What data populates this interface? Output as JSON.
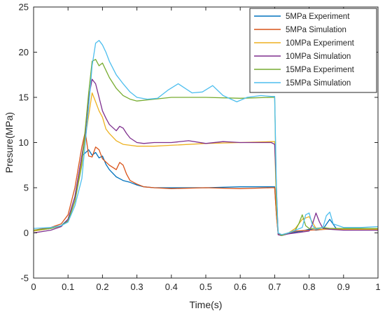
{
  "chart_data": {
    "type": "line",
    "title": "",
    "xlabel": "Time(s)",
    "ylabel": "Presure(MPa)",
    "xlim": [
      0,
      1
    ],
    "ylim": [
      -5,
      25
    ],
    "xticks": [
      0,
      0.1,
      0.2,
      0.3,
      0.4,
      0.5,
      0.6,
      0.7,
      0.8,
      0.9,
      1
    ],
    "xtick_labels": [
      "0",
      "0.1",
      "0.2",
      "0.3",
      "0.4",
      "0.5",
      "0.6",
      "0.7",
      "0.8",
      "0.9",
      "1"
    ],
    "yticks": [
      -5,
      0,
      5,
      10,
      15,
      20,
      25
    ],
    "ytick_labels": [
      "-5",
      "0",
      "5",
      "10",
      "15",
      "20",
      "25"
    ],
    "grid": false,
    "legend_position": "top-right",
    "series": [
      {
        "name": "5MPa Experiment",
        "color": "#0072BD",
        "x": [
          0,
          0.05,
          0.08,
          0.1,
          0.12,
          0.14,
          0.16,
          0.17,
          0.18,
          0.19,
          0.2,
          0.21,
          0.22,
          0.24,
          0.26,
          0.28,
          0.3,
          0.32,
          0.35,
          0.4,
          0.5,
          0.6,
          0.69,
          0.7,
          0.705,
          0.71,
          0.72,
          0.74,
          0.76,
          0.78,
          0.8,
          0.82,
          0.84,
          0.86,
          0.88,
          0.9,
          0.95,
          1.0
        ],
        "y": [
          0.2,
          0.5,
          0.8,
          1.5,
          4.0,
          8.5,
          9.2,
          8.6,
          8.9,
          8.3,
          8.5,
          7.6,
          7.0,
          6.2,
          5.8,
          5.6,
          5.3,
          5.1,
          5.0,
          5.0,
          5.0,
          5.1,
          5.1,
          5.1,
          2.0,
          0.0,
          -0.2,
          -0.1,
          0.1,
          0.2,
          0.4,
          0.3,
          0.4,
          1.5,
          0.4,
          0.5,
          0.4,
          0.4
        ]
      },
      {
        "name": "5MPa Simulation",
        "color": "#D95319",
        "x": [
          0,
          0.05,
          0.08,
          0.1,
          0.12,
          0.14,
          0.15,
          0.16,
          0.17,
          0.18,
          0.19,
          0.2,
          0.22,
          0.24,
          0.25,
          0.26,
          0.27,
          0.28,
          0.3,
          0.32,
          0.35,
          0.4,
          0.5,
          0.6,
          0.69,
          0.7,
          0.705,
          0.71,
          0.72,
          0.74,
          0.76,
          0.8,
          0.85,
          0.9,
          0.95,
          1.0
        ],
        "y": [
          0.3,
          0.6,
          1.0,
          2.0,
          5.0,
          9.5,
          11.2,
          8.5,
          8.4,
          9.5,
          9.2,
          8.2,
          7.5,
          7.0,
          7.8,
          7.5,
          6.5,
          5.8,
          5.4,
          5.1,
          5.0,
          4.9,
          5.0,
          4.9,
          5.0,
          5.0,
          2.0,
          -0.1,
          -0.2,
          0.0,
          0.2,
          0.3,
          0.4,
          0.4,
          0.4,
          0.3
        ]
      },
      {
        "name": "10MPa Experiment",
        "color": "#EDB120",
        "x": [
          0,
          0.05,
          0.08,
          0.1,
          0.12,
          0.14,
          0.16,
          0.17,
          0.18,
          0.19,
          0.2,
          0.21,
          0.22,
          0.24,
          0.26,
          0.28,
          0.3,
          0.35,
          0.4,
          0.5,
          0.6,
          0.69,
          0.7,
          0.705,
          0.71,
          0.72,
          0.74,
          0.76,
          0.78,
          0.8,
          0.82,
          0.84,
          0.86,
          0.88,
          0.9,
          0.95,
          1.0
        ],
        "y": [
          0.2,
          0.5,
          0.8,
          1.3,
          3.5,
          8.0,
          13.0,
          15.5,
          14.5,
          13.5,
          12.8,
          11.5,
          11.0,
          10.2,
          9.8,
          9.7,
          9.6,
          9.6,
          9.7,
          9.9,
          10.0,
          10.1,
          10.1,
          3.0,
          0.0,
          -0.3,
          0.0,
          0.5,
          1.5,
          1.8,
          0.5,
          0.4,
          0.4,
          0.4,
          0.4,
          0.4,
          0.4
        ]
      },
      {
        "name": "10MPa Simulation",
        "color": "#7E2F8E",
        "x": [
          0,
          0.05,
          0.08,
          0.1,
          0.12,
          0.14,
          0.15,
          0.16,
          0.17,
          0.18,
          0.19,
          0.2,
          0.21,
          0.22,
          0.24,
          0.25,
          0.26,
          0.27,
          0.28,
          0.3,
          0.32,
          0.35,
          0.4,
          0.45,
          0.5,
          0.55,
          0.6,
          0.65,
          0.69,
          0.7,
          0.705,
          0.71,
          0.72,
          0.74,
          0.78,
          0.8,
          0.81,
          0.82,
          0.83,
          0.84,
          0.86,
          0.9,
          0.95,
          1.0
        ],
        "y": [
          0.0,
          0.3,
          0.7,
          1.5,
          4.0,
          8.5,
          11.0,
          15.0,
          17.0,
          16.5,
          15.0,
          13.5,
          12.7,
          12.0,
          11.3,
          11.8,
          11.6,
          11.0,
          10.5,
          10.0,
          9.9,
          10.0,
          10.0,
          10.2,
          9.9,
          10.1,
          10.0,
          10.0,
          10.0,
          9.8,
          5.0,
          -0.2,
          -0.3,
          -0.1,
          0.1,
          0.2,
          1.0,
          2.2,
          1.2,
          0.5,
          0.4,
          0.3,
          0.3,
          0.3
        ]
      },
      {
        "name": "15MPa Experiment",
        "color": "#77AC30",
        "x": [
          0,
          0.05,
          0.08,
          0.1,
          0.12,
          0.14,
          0.16,
          0.17,
          0.18,
          0.19,
          0.2,
          0.21,
          0.22,
          0.24,
          0.26,
          0.28,
          0.3,
          0.35,
          0.4,
          0.5,
          0.6,
          0.69,
          0.7,
          0.705,
          0.71,
          0.72,
          0.74,
          0.76,
          0.77,
          0.78,
          0.79,
          0.8,
          0.82,
          0.84,
          0.86,
          0.88,
          0.9,
          0.95,
          1.0
        ],
        "y": [
          0.3,
          0.5,
          0.8,
          1.3,
          3.5,
          7.5,
          15.5,
          19.0,
          19.2,
          18.5,
          18.8,
          18.0,
          17.2,
          16.0,
          15.2,
          14.8,
          14.6,
          14.8,
          15.0,
          15.0,
          14.9,
          15.0,
          15.0,
          4.0,
          0.0,
          -0.3,
          0.0,
          0.3,
          1.0,
          2.0,
          0.8,
          0.5,
          0.5,
          0.6,
          0.5,
          0.5,
          0.5,
          0.5,
          0.5
        ]
      },
      {
        "name": "15MPa Simulation",
        "color": "#4DBEEE",
        "x": [
          0,
          0.05,
          0.08,
          0.1,
          0.12,
          0.14,
          0.16,
          0.17,
          0.18,
          0.19,
          0.2,
          0.21,
          0.22,
          0.24,
          0.26,
          0.28,
          0.3,
          0.33,
          0.36,
          0.39,
          0.42,
          0.46,
          0.49,
          0.52,
          0.55,
          0.59,
          0.62,
          0.66,
          0.69,
          0.7,
          0.705,
          0.71,
          0.72,
          0.74,
          0.76,
          0.78,
          0.79,
          0.8,
          0.81,
          0.82,
          0.84,
          0.85,
          0.86,
          0.87,
          0.9,
          0.95,
          1.0
        ],
        "y": [
          0.5,
          0.6,
          0.8,
          1.2,
          3.0,
          6.0,
          14.0,
          18.5,
          21.0,
          21.3,
          20.8,
          20.0,
          19.0,
          17.5,
          16.5,
          15.6,
          15.0,
          14.8,
          14.9,
          15.8,
          16.5,
          15.5,
          15.6,
          16.3,
          15.2,
          14.5,
          15.0,
          15.2,
          15.1,
          15.1,
          5.0,
          0.0,
          -0.2,
          0.0,
          0.3,
          0.6,
          2.0,
          2.2,
          0.8,
          0.4,
          0.6,
          1.9,
          2.3,
          1.0,
          0.6,
          0.6,
          0.7
        ]
      }
    ]
  }
}
